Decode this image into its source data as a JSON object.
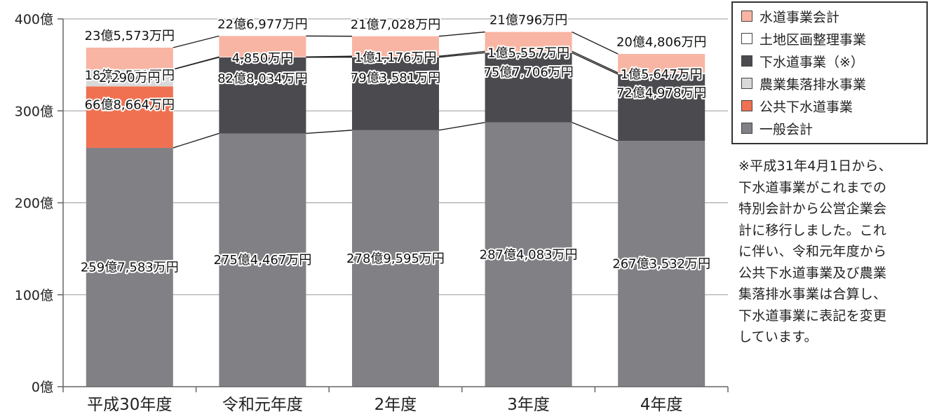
{
  "chart_data": {
    "type": "bar",
    "stacked": true,
    "categories": [
      "平成30年度",
      "令和元年度",
      "2年度",
      "3年度",
      "4年度"
    ],
    "y_ticks": [
      "0億",
      "100億",
      "200億",
      "300億",
      "400億"
    ],
    "ylim": [
      0,
      400
    ],
    "series": [
      {
        "name": "一般会計",
        "color": "#808085",
        "values": [
          259.7583,
          275.4467,
          278.9595,
          287.4083,
          267.3532
        ],
        "labels": [
          "259億7,583万円",
          "275億4,467万円",
          "278億9,595万円",
          "287億4,083万円",
          "267億3,532万円"
        ]
      },
      {
        "name": "公共下水道事業",
        "color": "#f07151",
        "values": [
          66.8664,
          0,
          0,
          0,
          0
        ],
        "labels": [
          "66億8,664万円",
          "",
          "",
          "",
          ""
        ]
      },
      {
        "name": "農業集落排水事業",
        "color": "#d9d9d9",
        "values": [
          18.3571,
          0,
          0,
          0,
          0
        ],
        "labels": [
          "18億3,571万円",
          "",
          "",
          "",
          ""
        ]
      },
      {
        "name": "下水道事業（※）",
        "color": "#4b4b4f",
        "values": [
          0,
          82.8034,
          79.3581,
          75.7706,
          72.4978
        ],
        "labels": [
          "",
          "82億8,034万円",
          "79億3,581万円",
          "75億7,706万円",
          "72億4,978万円"
        ]
      },
      {
        "name": "土地区画整理事業",
        "color": "#ffffff",
        "values": [
          0.229,
          0.485,
          1.1176,
          1.5557,
          1.5647
        ],
        "labels": [
          "2,290万円",
          "4,850万円",
          "1億1,176万円",
          "1億5,557万円",
          "1億5,647万円"
        ]
      },
      {
        "name": "水道事業会計",
        "color": "#f8b5a3",
        "values": [
          23.5573,
          22.6977,
          21.7028,
          21.0796,
          20.4806
        ],
        "labels": [
          "23億5,573万円",
          "22億6,977万円",
          "21億7,028万円",
          "21億796万円",
          "20億4,806万円"
        ]
      }
    ],
    "legend_order": [
      "水道事業会計",
      "土地区画整理事業",
      "下水道事業（※）",
      "農業集落排水事業",
      "公共下水道事業",
      "一般会計"
    ],
    "legend_position": "top-right",
    "grid": true
  },
  "note": "※平成31年4月1日から、\n下水道事業がこれまでの\n特別会計から公営企業会\n計に移行しました。これ\nに伴い、令和元年度から\n公共下水道事業及び農業\n集落排水事業は合算し、\n下水道事業に表記を変更\nしています。"
}
